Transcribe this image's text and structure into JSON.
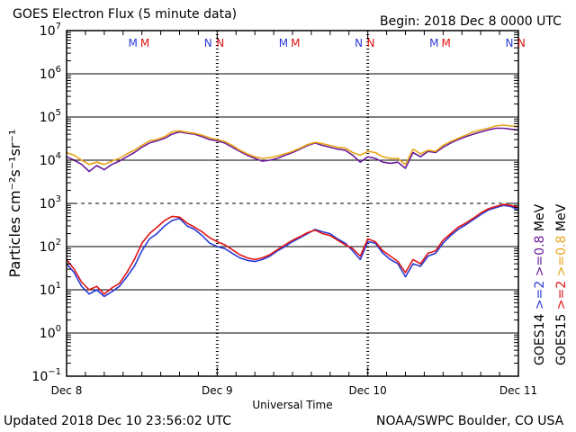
{
  "header": {
    "title": "GOES Electron Flux (5 minute data)",
    "begin": "Begin: 2018 Dec 8 0000 UTC"
  },
  "footer": {
    "updated": "Updated 2018 Dec 10 23:56:02 UTC",
    "credit": "NOAA/SWPC Boulder, CO USA"
  },
  "chart_data": {
    "type": "line",
    "xlabel": "Universal Time",
    "ylabel": "Particles cm⁻²s⁻¹sr⁻¹",
    "y_scale": "log",
    "ylim": [
      0.1,
      10000000
    ],
    "y_ticks": [
      {
        "value": 10000000,
        "base": "10",
        "exp": "7"
      },
      {
        "value": 1000000,
        "base": "10",
        "exp": "6"
      },
      {
        "value": 100000,
        "base": "10",
        "exp": "5"
      },
      {
        "value": 10000,
        "base": "10",
        "exp": "4"
      },
      {
        "value": 1000,
        "base": "10",
        "exp": "3"
      },
      {
        "value": 100,
        "base": "10",
        "exp": "2"
      },
      {
        "value": 10,
        "base": "10",
        "exp": "1"
      },
      {
        "value": 1,
        "base": "10",
        "exp": "0"
      },
      {
        "value": 0.1,
        "base": "10",
        "exp": "−1"
      }
    ],
    "x_ticks": [
      "Dec 8",
      "Dec 9",
      "Dec 10",
      "Dec 11"
    ],
    "xlim_days": [
      0,
      3
    ],
    "grid": true,
    "reference_line": 1000,
    "markers": [
      {
        "label": "M",
        "day": 0.44,
        "color": "#2a3ad6"
      },
      {
        "label": "M",
        "day": 0.52,
        "color": "#e01414"
      },
      {
        "label": "N",
        "day": 0.94,
        "color": "#2a3ad6"
      },
      {
        "label": "N",
        "day": 1.02,
        "color": "#e01414"
      },
      {
        "label": "M",
        "day": 1.44,
        "color": "#2a3ad6"
      },
      {
        "label": "M",
        "day": 1.52,
        "color": "#e01414"
      },
      {
        "label": "N",
        "day": 1.94,
        "color": "#2a3ad6"
      },
      {
        "label": "N",
        "day": 2.02,
        "color": "#e01414"
      },
      {
        "label": "M",
        "day": 2.44,
        "color": "#2a3ad6"
      },
      {
        "label": "M",
        "day": 2.52,
        "color": "#e01414"
      },
      {
        "label": "N",
        "day": 2.94,
        "color": "#2a3ad6"
      },
      {
        "label": "N",
        "day": 3.02,
        "color": "#e01414"
      }
    ],
    "legend": [
      {
        "label": "GOES14",
        "color": "#000000"
      },
      {
        "label": ">=2",
        "color": "#2a3ad6"
      },
      {
        "label": ">=0.8",
        "color": "#6a1b9a"
      },
      {
        "label": "GOES15",
        "color": "#000000"
      },
      {
        "label": ">=2",
        "color": "#e01414"
      },
      {
        "label": ">=0.8",
        "color": "#e8a317"
      },
      {
        "label": "MeV",
        "color": "#000000"
      },
      {
        "label": "MeV",
        "color": "#000000"
      }
    ],
    "series": [
      {
        "color": "#6a1b9a",
        "x": [
          0,
          0.05,
          0.1,
          0.15,
          0.2,
          0.25,
          0.3,
          0.35,
          0.4,
          0.45,
          0.5,
          0.55,
          0.6,
          0.65,
          0.7,
          0.75,
          0.8,
          0.85,
          0.9,
          0.95,
          1.0,
          1.05,
          1.1,
          1.15,
          1.2,
          1.25,
          1.3,
          1.35,
          1.4,
          1.45,
          1.5,
          1.55,
          1.6,
          1.65,
          1.7,
          1.75,
          1.8,
          1.85,
          1.9,
          1.95,
          2.0,
          2.05,
          2.1,
          2.15,
          2.2,
          2.25,
          2.3,
          2.35,
          2.4,
          2.45,
          2.5,
          2.55,
          2.6,
          2.65,
          2.7,
          2.75,
          2.8,
          2.85,
          2.9,
          2.95,
          3.0
        ],
        "y": [
          12000,
          10000,
          8000,
          5500,
          7500,
          6000,
          8000,
          9500,
          12000,
          15000,
          20000,
          25000,
          28000,
          32000,
          40000,
          45000,
          42000,
          40000,
          35000,
          30000,
          28000,
          25000,
          20000,
          16000,
          13000,
          11000,
          9500,
          10000,
          11000,
          13000,
          15000,
          18000,
          22000,
          25000,
          22000,
          20000,
          18000,
          17000,
          13000,
          9000,
          12000,
          11000,
          9000,
          8500,
          9000,
          6500,
          15000,
          12000,
          16000,
          15000,
          20000,
          25000,
          30000,
          35000,
          40000,
          45000,
          50000,
          55000,
          55000,
          52000,
          50000
        ]
      },
      {
        "color": "#e8a317",
        "x": [
          0,
          0.05,
          0.1,
          0.15,
          0.2,
          0.25,
          0.3,
          0.35,
          0.4,
          0.45,
          0.5,
          0.55,
          0.6,
          0.65,
          0.7,
          0.75,
          0.8,
          0.85,
          0.9,
          0.95,
          1.0,
          1.05,
          1.1,
          1.15,
          1.2,
          1.25,
          1.3,
          1.35,
          1.4,
          1.45,
          1.5,
          1.55,
          1.6,
          1.65,
          1.7,
          1.75,
          1.8,
          1.85,
          1.9,
          1.95,
          2.0,
          2.05,
          2.1,
          2.15,
          2.2,
          2.25,
          2.3,
          2.35,
          2.4,
          2.45,
          2.5,
          2.55,
          2.6,
          2.65,
          2.7,
          2.75,
          2.8,
          2.85,
          2.9,
          2.95,
          3.0
        ],
        "y": [
          15000,
          13000,
          10000,
          8000,
          9000,
          8000,
          9500,
          11000,
          14000,
          17000,
          22000,
          28000,
          30000,
          35000,
          45000,
          48000,
          44000,
          42000,
          38000,
          33000,
          30000,
          27000,
          22000,
          17000,
          14000,
          12000,
          11000,
          11500,
          12500,
          14000,
          16000,
          19000,
          23000,
          26000,
          24000,
          22000,
          20000,
          19000,
          15000,
          13000,
          16000,
          15000,
          12000,
          11000,
          11000,
          8000,
          18000,
          14000,
          17000,
          16000,
          22000,
          27000,
          32000,
          38000,
          45000,
          50000,
          55000,
          62000,
          65000,
          62000,
          60000
        ]
      },
      {
        "color": "#2a3ad6",
        "x": [
          0,
          0.05,
          0.1,
          0.15,
          0.2,
          0.25,
          0.3,
          0.35,
          0.4,
          0.45,
          0.5,
          0.55,
          0.6,
          0.65,
          0.7,
          0.75,
          0.8,
          0.85,
          0.9,
          0.95,
          1.0,
          1.05,
          1.1,
          1.15,
          1.2,
          1.25,
          1.3,
          1.35,
          1.4,
          1.45,
          1.5,
          1.55,
          1.6,
          1.65,
          1.7,
          1.75,
          1.8,
          1.85,
          1.9,
          1.95,
          2.0,
          2.05,
          2.1,
          2.15,
          2.2,
          2.25,
          2.3,
          2.35,
          2.4,
          2.45,
          2.5,
          2.55,
          2.6,
          2.65,
          2.7,
          2.75,
          2.8,
          2.85,
          2.9,
          2.95,
          3.0
        ],
        "y": [
          40,
          25,
          12,
          8,
          10,
          7,
          9,
          12,
          20,
          35,
          80,
          150,
          200,
          300,
          400,
          450,
          300,
          250,
          180,
          120,
          100,
          90,
          70,
          55,
          48,
          45,
          50,
          60,
          80,
          100,
          130,
          160,
          200,
          250,
          220,
          200,
          150,
          120,
          80,
          50,
          130,
          120,
          70,
          50,
          40,
          20,
          40,
          35,
          60,
          70,
          120,
          180,
          250,
          320,
          420,
          550,
          700,
          800,
          900,
          850,
          700
        ]
      },
      {
        "color": "#e01414",
        "x": [
          0,
          0.05,
          0.1,
          0.15,
          0.2,
          0.25,
          0.3,
          0.35,
          0.4,
          0.45,
          0.5,
          0.55,
          0.6,
          0.65,
          0.7,
          0.75,
          0.8,
          0.85,
          0.9,
          0.95,
          1.0,
          1.05,
          1.1,
          1.15,
          1.2,
          1.25,
          1.3,
          1.35,
          1.4,
          1.45,
          1.5,
          1.55,
          1.6,
          1.65,
          1.7,
          1.75,
          1.8,
          1.85,
          1.9,
          1.95,
          2.0,
          2.05,
          2.1,
          2.15,
          2.2,
          2.25,
          2.3,
          2.35,
          2.4,
          2.45,
          2.5,
          2.55,
          2.6,
          2.65,
          2.7,
          2.75,
          2.8,
          2.85,
          2.9,
          2.95,
          3.0
        ],
        "y": [
          50,
          30,
          15,
          10,
          12,
          8,
          11,
          14,
          25,
          50,
          120,
          200,
          280,
          400,
          500,
          480,
          350,
          280,
          220,
          160,
          130,
          110,
          85,
          65,
          55,
          50,
          55,
          65,
          85,
          110,
          140,
          170,
          210,
          240,
          200,
          180,
          140,
          110,
          90,
          60,
          150,
          130,
          80,
          60,
          45,
          25,
          50,
          40,
          70,
          80,
          140,
          200,
          280,
          350,
          450,
          600,
          750,
          850,
          950,
          900,
          800
        ]
      }
    ]
  }
}
